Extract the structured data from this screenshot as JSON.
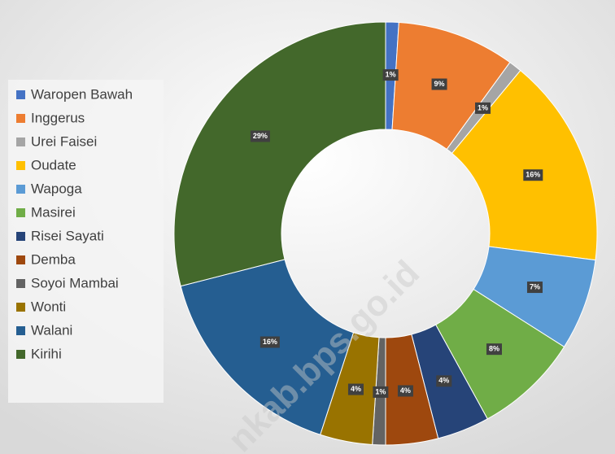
{
  "chart_data": {
    "type": "donut",
    "categories": [
      "Waropen Bawah",
      "Inggerus",
      "Urei Faisei",
      "Oudate",
      "Wapoga",
      "Masirei",
      "Risei Sayati",
      "Demba",
      "Soyoi Mambai",
      "Wonti",
      "Walani",
      "Kirihi"
    ],
    "values": [
      1,
      9,
      1,
      16,
      7,
      8,
      4,
      4,
      1,
      4,
      16,
      29
    ],
    "value_labels": [
      "1%",
      "9%",
      "1%",
      "16%",
      "7%",
      "8%",
      "4%",
      "4%",
      "1%",
      "4%",
      "16%",
      "29%"
    ],
    "colors": [
      "#4472c4",
      "#ed7d31",
      "#a5a5a5",
      "#ffc000",
      "#5b9bd5",
      "#70ad47",
      "#264478",
      "#9e480e",
      "#636363",
      "#997300",
      "#255e91",
      "#43682b"
    ],
    "legend": "left",
    "watermark": "nkab.bps.go.id"
  }
}
